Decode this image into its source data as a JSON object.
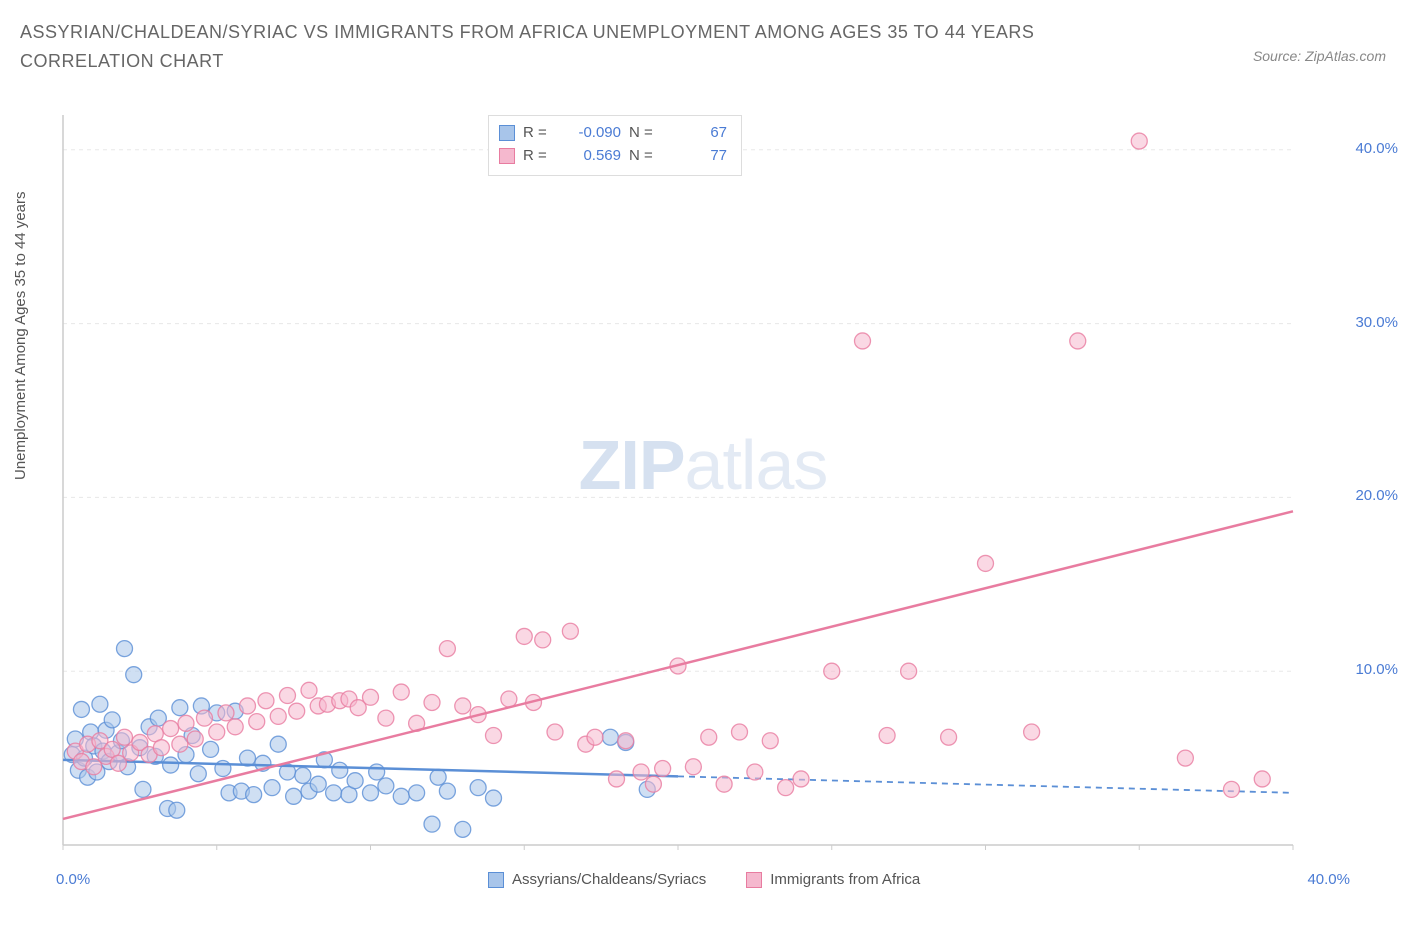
{
  "title": "ASSYRIAN/CHALDEAN/SYRIAC VS IMMIGRANTS FROM AFRICA UNEMPLOYMENT AMONG AGES 35 TO 44 YEARS CORRELATION CHART",
  "source": "Source: ZipAtlas.com",
  "y_axis_label": "Unemployment Among Ages 35 to 44 years",
  "watermark": {
    "bold": "ZIP",
    "light": "atlas"
  },
  "chart": {
    "type": "scatter",
    "background_color": "#ffffff",
    "grid_color": "#e8e8e8",
    "axis_color": "#cccccc",
    "tick_label_color": "#4a7bd4",
    "tick_fontsize": 15,
    "label_fontsize": 15,
    "xlim": [
      0,
      40
    ],
    "ylim": [
      0,
      42
    ],
    "x_ticks": [
      0,
      5,
      10,
      15,
      20,
      25,
      30,
      35,
      40
    ],
    "x_tick_labels": [
      "0.0%",
      "",
      "",
      "",
      "",
      "",
      "",
      "",
      "40.0%"
    ],
    "y_ticks": [
      10,
      20,
      30,
      40
    ],
    "y_tick_labels": [
      "10.0%",
      "20.0%",
      "30.0%",
      "40.0%"
    ],
    "marker_radius": 8,
    "marker_opacity": 0.55,
    "marker_stroke_width": 1.3
  },
  "series": [
    {
      "name": "Assyrians/Chaldeans/Syriacs",
      "color": "#5b8fd6",
      "fill": "#a8c5ea",
      "R": "-0.090",
      "N": "67",
      "trend": {
        "x1": 0,
        "y1": 4.9,
        "x2": 40,
        "y2": 3.0,
        "solid_until_x": 20
      },
      "points": [
        [
          0.3,
          5.2
        ],
        [
          0.4,
          6.1
        ],
        [
          0.5,
          4.3
        ],
        [
          0.6,
          7.8
        ],
        [
          0.7,
          5.0
        ],
        [
          0.8,
          3.9
        ],
        [
          0.9,
          6.5
        ],
        [
          1.0,
          5.7
        ],
        [
          1.1,
          4.2
        ],
        [
          1.2,
          8.1
        ],
        [
          1.3,
          5.4
        ],
        [
          1.4,
          6.6
        ],
        [
          1.5,
          4.8
        ],
        [
          1.6,
          7.2
        ],
        [
          1.8,
          5.3
        ],
        [
          1.9,
          6.0
        ],
        [
          2.0,
          11.3
        ],
        [
          2.1,
          4.5
        ],
        [
          2.3,
          9.8
        ],
        [
          2.5,
          5.6
        ],
        [
          2.6,
          3.2
        ],
        [
          2.8,
          6.8
        ],
        [
          3.0,
          5.1
        ],
        [
          3.1,
          7.3
        ],
        [
          3.4,
          2.1
        ],
        [
          3.5,
          4.6
        ],
        [
          3.7,
          2.0
        ],
        [
          3.8,
          7.9
        ],
        [
          4.0,
          5.2
        ],
        [
          4.2,
          6.3
        ],
        [
          4.4,
          4.1
        ],
        [
          4.5,
          8.0
        ],
        [
          4.8,
          5.5
        ],
        [
          5.0,
          7.6
        ],
        [
          5.2,
          4.4
        ],
        [
          5.4,
          3.0
        ],
        [
          5.6,
          7.7
        ],
        [
          5.8,
          3.1
        ],
        [
          6.0,
          5.0
        ],
        [
          6.2,
          2.9
        ],
        [
          6.5,
          4.7
        ],
        [
          6.8,
          3.3
        ],
        [
          7.0,
          5.8
        ],
        [
          7.3,
          4.2
        ],
        [
          7.5,
          2.8
        ],
        [
          7.8,
          4.0
        ],
        [
          8.0,
          3.1
        ],
        [
          8.3,
          3.5
        ],
        [
          8.5,
          4.9
        ],
        [
          8.8,
          3.0
        ],
        [
          9.0,
          4.3
        ],
        [
          9.3,
          2.9
        ],
        [
          9.5,
          3.7
        ],
        [
          10.0,
          3.0
        ],
        [
          10.2,
          4.2
        ],
        [
          10.5,
          3.4
        ],
        [
          11.0,
          2.8
        ],
        [
          11.5,
          3.0
        ],
        [
          12.0,
          1.2
        ],
        [
          12.2,
          3.9
        ],
        [
          12.5,
          3.1
        ],
        [
          13.0,
          0.9
        ],
        [
          13.5,
          3.3
        ],
        [
          14.0,
          2.7
        ],
        [
          17.8,
          6.2
        ],
        [
          18.3,
          5.9
        ],
        [
          19.0,
          3.2
        ]
      ]
    },
    {
      "name": "Immigrants from Africa",
      "color": "#e87ca0",
      "fill": "#f5b8ce",
      "R": "0.569",
      "N": "77",
      "trend": {
        "x1": 0,
        "y1": 1.5,
        "x2": 40,
        "y2": 19.2,
        "solid_until_x": 40
      },
      "points": [
        [
          0.4,
          5.4
        ],
        [
          0.6,
          4.8
        ],
        [
          0.8,
          5.8
        ],
        [
          1.0,
          4.5
        ],
        [
          1.2,
          6.0
        ],
        [
          1.4,
          5.1
        ],
        [
          1.6,
          5.5
        ],
        [
          1.8,
          4.7
        ],
        [
          2.0,
          6.2
        ],
        [
          2.2,
          5.3
        ],
        [
          2.5,
          5.9
        ],
        [
          2.8,
          5.2
        ],
        [
          3.0,
          6.4
        ],
        [
          3.2,
          5.6
        ],
        [
          3.5,
          6.7
        ],
        [
          3.8,
          5.8
        ],
        [
          4.0,
          7.0
        ],
        [
          4.3,
          6.1
        ],
        [
          4.6,
          7.3
        ],
        [
          5.0,
          6.5
        ],
        [
          5.3,
          7.6
        ],
        [
          5.6,
          6.8
        ],
        [
          6.0,
          8.0
        ],
        [
          6.3,
          7.1
        ],
        [
          6.6,
          8.3
        ],
        [
          7.0,
          7.4
        ],
        [
          7.3,
          8.6
        ],
        [
          7.6,
          7.7
        ],
        [
          8.0,
          8.9
        ],
        [
          8.3,
          8.0
        ],
        [
          8.6,
          8.1
        ],
        [
          9.0,
          8.3
        ],
        [
          9.3,
          8.4
        ],
        [
          9.6,
          7.9
        ],
        [
          10.0,
          8.5
        ],
        [
          10.5,
          7.3
        ],
        [
          11.0,
          8.8
        ],
        [
          11.5,
          7.0
        ],
        [
          12.0,
          8.2
        ],
        [
          12.5,
          11.3
        ],
        [
          13.0,
          8.0
        ],
        [
          13.5,
          7.5
        ],
        [
          14.0,
          6.3
        ],
        [
          14.5,
          8.4
        ],
        [
          15.0,
          12.0
        ],
        [
          15.3,
          8.2
        ],
        [
          15.6,
          11.8
        ],
        [
          16.0,
          6.5
        ],
        [
          16.5,
          12.3
        ],
        [
          17.0,
          5.8
        ],
        [
          17.3,
          6.2
        ],
        [
          18.0,
          3.8
        ],
        [
          18.3,
          6.0
        ],
        [
          18.8,
          4.2
        ],
        [
          19.2,
          3.5
        ],
        [
          19.5,
          4.4
        ],
        [
          20.0,
          10.3
        ],
        [
          20.5,
          4.5
        ],
        [
          21.0,
          6.2
        ],
        [
          21.5,
          3.5
        ],
        [
          22.0,
          6.5
        ],
        [
          22.5,
          4.2
        ],
        [
          23.0,
          6.0
        ],
        [
          23.5,
          3.3
        ],
        [
          24.0,
          3.8
        ],
        [
          25.0,
          10.0
        ],
        [
          26.0,
          29.0
        ],
        [
          26.8,
          6.3
        ],
        [
          27.5,
          10.0
        ],
        [
          28.8,
          6.2
        ],
        [
          30.0,
          16.2
        ],
        [
          31.5,
          6.5
        ],
        [
          33.0,
          29.0
        ],
        [
          35.0,
          40.5
        ],
        [
          36.5,
          5.0
        ],
        [
          38.0,
          3.2
        ],
        [
          39.0,
          3.8
        ]
      ]
    }
  ],
  "legend_stats_labels": {
    "R": "R =",
    "N": "N ="
  }
}
